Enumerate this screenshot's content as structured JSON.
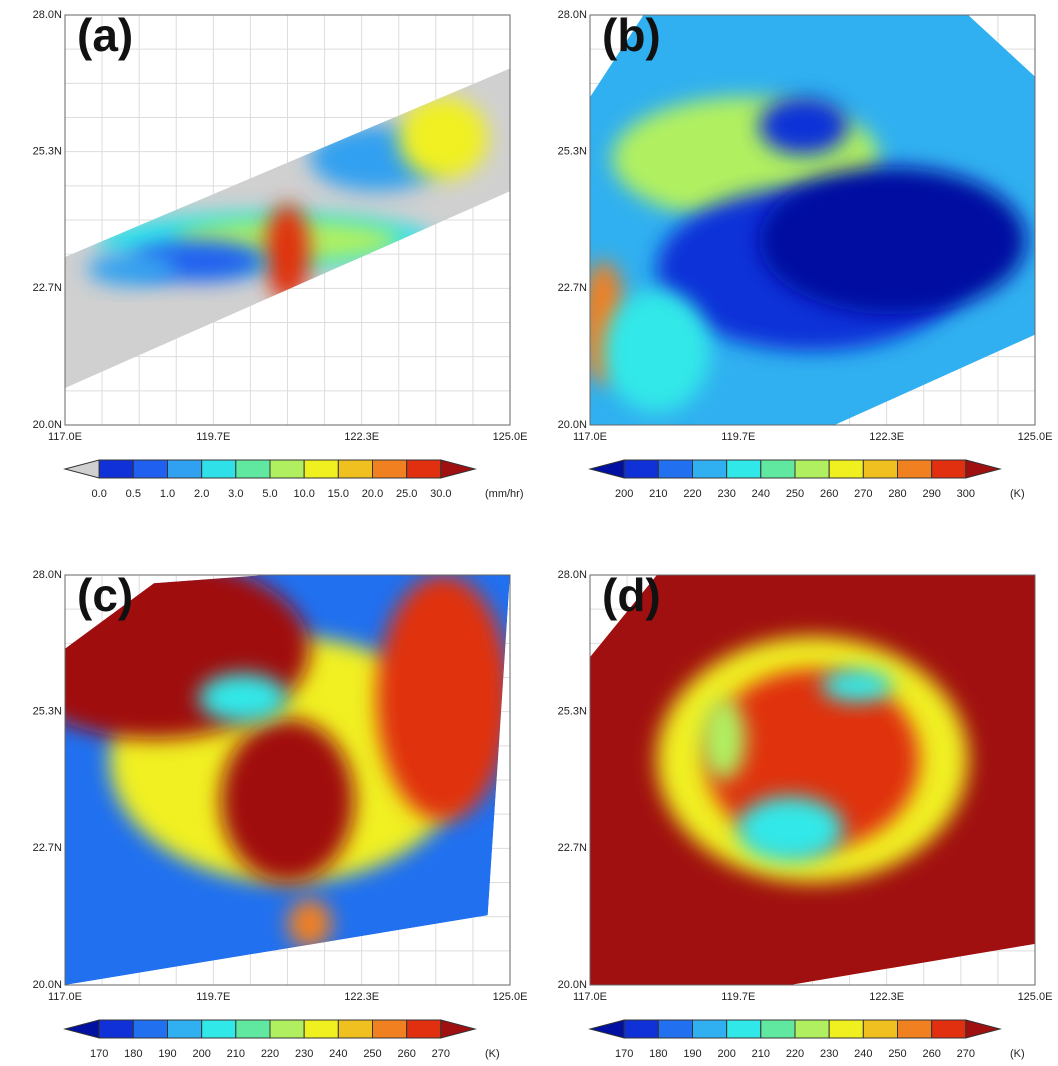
{
  "panels": [
    {
      "label": "(a)",
      "yticks": [
        "28.0N",
        "25.3N",
        "22.7N",
        "20.0N"
      ],
      "xticks": [
        "117.0E",
        "119.7E",
        "122.3E",
        "125.0E"
      ],
      "colorbar": {
        "colors": [
          "#d0d0d0",
          "#1030d8",
          "#2060f0",
          "#30a0f0",
          "#30e0e8",
          "#60e8a0",
          "#b0f060",
          "#f0f020",
          "#f0c020",
          "#f08020",
          "#e03010",
          "#a01010"
        ],
        "labels": [
          "0.0",
          "0.5",
          "1.0",
          "2.0",
          "3.0",
          "5.0",
          "10.0",
          "15.0",
          "20.0",
          "25.0",
          "30.0"
        ],
        "unit": "(mm/hr)"
      }
    },
    {
      "label": "(b)",
      "yticks": [
        "28.0N",
        "25.3N",
        "22.7N",
        "20.0N"
      ],
      "xticks": [
        "117.0E",
        "119.7E",
        "122.3E",
        "125.0E"
      ],
      "colorbar": {
        "colors": [
          "#0010a0",
          "#1030d8",
          "#2070f0",
          "#30b0f0",
          "#30e8e8",
          "#60e8a0",
          "#b0f060",
          "#f0f020",
          "#f0c020",
          "#f08020",
          "#e03010",
          "#a01010"
        ],
        "labels": [
          "200",
          "210",
          "220",
          "230",
          "240",
          "250",
          "260",
          "270",
          "280",
          "290",
          "300"
        ],
        "unit": "(K)"
      }
    },
    {
      "label": "(c)",
      "yticks": [
        "28.0N",
        "25.3N",
        "22.7N",
        "20.0N"
      ],
      "xticks": [
        "117.0E",
        "119.7E",
        "122.3E",
        "125.0E"
      ],
      "colorbar": {
        "colors": [
          "#0010a0",
          "#1030d8",
          "#2070f0",
          "#30b0f0",
          "#30e8e8",
          "#60e8a0",
          "#b0f060",
          "#f0f020",
          "#f0c020",
          "#f08020",
          "#e03010",
          "#a01010"
        ],
        "labels": [
          "170",
          "180",
          "190",
          "200",
          "210",
          "220",
          "230",
          "240",
          "250",
          "260",
          "270"
        ],
        "unit": "(K)"
      }
    },
    {
      "label": "(d)",
      "yticks": [
        "28.0N",
        "25.3N",
        "22.7N",
        "20.0N"
      ],
      "xticks": [
        "117.0E",
        "119.7E",
        "122.3E",
        "125.0E"
      ],
      "colorbar": {
        "colors": [
          "#0010a0",
          "#1030d8",
          "#2070f0",
          "#30b0f0",
          "#30e8e8",
          "#60e8a0",
          "#b0f060",
          "#f0f020",
          "#f0c020",
          "#f08020",
          "#e03010",
          "#a01010"
        ],
        "labels": [
          "170",
          "180",
          "190",
          "200",
          "210",
          "220",
          "230",
          "240",
          "250",
          "260",
          "270"
        ],
        "unit": "(K)"
      }
    }
  ]
}
